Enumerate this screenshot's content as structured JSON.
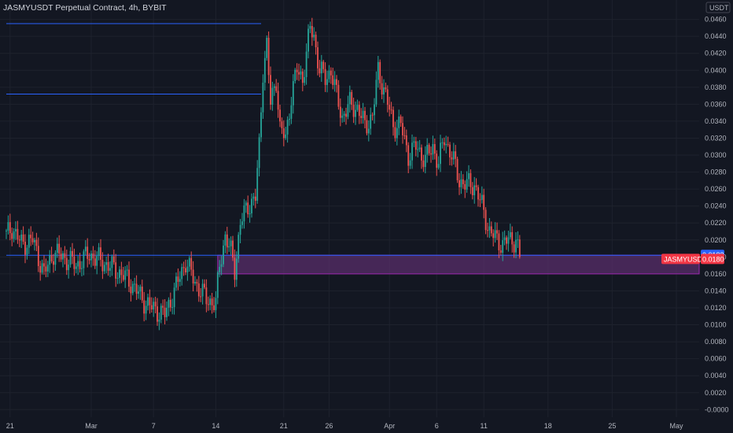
{
  "header": {
    "title": "JASMYUSDT Perpetual Contract, 4h, BYBIT",
    "currency": "USDT"
  },
  "colors": {
    "background": "#131722",
    "up": "#26a69a",
    "down": "#ef5350",
    "grid": "#1e222d",
    "hline": "#2962ff",
    "zone_fill": "#5c2f6e",
    "zone_border": "#9c27b0",
    "price_tag": "#f23645",
    "level_tag": "#2962ff"
  },
  "chart_data": {
    "type": "candlestick",
    "symbol": "JASMYUSDT",
    "interval": "4h",
    "exchange": "BYBIT",
    "ylim": [
      -0.0009,
      0.0481
    ],
    "y_ticks": [
      "0.0460",
      "0.0440",
      "0.0420",
      "0.0400",
      "0.0380",
      "0.0360",
      "0.0340",
      "0.0320",
      "0.0300",
      "0.0280",
      "0.0260",
      "0.0240",
      "0.0220",
      "0.0200",
      "0.0180",
      "0.0160",
      "0.0140",
      "0.0120",
      "0.0100",
      "0.0080",
      "0.0060",
      "0.0040",
      "0.0020",
      "-0.0000"
    ],
    "x_ticks": [
      {
        "label": "21",
        "bar": 2
      },
      {
        "label": "Mar",
        "bar": 45
      },
      {
        "label": "7",
        "bar": 78
      },
      {
        "label": "14",
        "bar": 111
      },
      {
        "label": "21",
        "bar": 147
      },
      {
        "label": "26",
        "bar": 171
      },
      {
        "label": "Apr",
        "bar": 203
      },
      {
        "label": "6",
        "bar": 228
      },
      {
        "label": "11",
        "bar": 253
      },
      {
        "label": "18",
        "bar": 287
      },
      {
        "label": "25",
        "bar": 321
      },
      {
        "label": "May",
        "bar": 355
      }
    ],
    "bars_visible": 384,
    "anchors": [
      [
        0,
        0.0205
      ],
      [
        3,
        0.0215
      ],
      [
        8,
        0.0195
      ],
      [
        14,
        0.02
      ],
      [
        20,
        0.016
      ],
      [
        25,
        0.0185
      ],
      [
        30,
        0.018
      ],
      [
        37,
        0.017
      ],
      [
        44,
        0.0183
      ],
      [
        50,
        0.0175
      ],
      [
        58,
        0.0165
      ],
      [
        66,
        0.015
      ],
      [
        72,
        0.013
      ],
      [
        77,
        0.012
      ],
      [
        84,
        0.0112
      ],
      [
        90,
        0.0145
      ],
      [
        95,
        0.0175
      ],
      [
        100,
        0.015
      ],
      [
        106,
        0.013
      ],
      [
        111,
        0.0125
      ],
      [
        113,
        0.017
      ],
      [
        116,
        0.0205
      ],
      [
        119,
        0.0185
      ],
      [
        121,
        0.0165
      ],
      [
        124,
        0.022
      ],
      [
        128,
        0.024
      ],
      [
        132,
        0.025
      ],
      [
        134,
        0.031
      ],
      [
        136,
        0.04
      ],
      [
        138,
        0.043
      ],
      [
        140,
        0.036
      ],
      [
        143,
        0.039
      ],
      [
        145,
        0.033
      ],
      [
        148,
        0.032
      ],
      [
        151,
        0.037
      ],
      [
        154,
        0.04
      ],
      [
        157,
        0.039
      ],
      [
        161,
        0.045
      ],
      [
        163,
        0.044
      ],
      [
        166,
        0.04
      ],
      [
        169,
        0.039
      ],
      [
        172,
        0.04
      ],
      [
        175,
        0.037
      ],
      [
        178,
        0.0345
      ],
      [
        182,
        0.036
      ],
      [
        186,
        0.0355
      ],
      [
        190,
        0.0335
      ],
      [
        194,
        0.0345
      ],
      [
        197,
        0.04
      ],
      [
        201,
        0.037
      ],
      [
        205,
        0.0335
      ],
      [
        209,
        0.0335
      ],
      [
        213,
        0.03
      ],
      [
        217,
        0.031
      ],
      [
        222,
        0.0295
      ],
      [
        226,
        0.031
      ],
      [
        229,
        0.029
      ],
      [
        232,
        0.032
      ],
      [
        236,
        0.03
      ],
      [
        240,
        0.027
      ],
      [
        244,
        0.0265
      ],
      [
        248,
        0.0265
      ],
      [
        252,
        0.024
      ],
      [
        256,
        0.021
      ],
      [
        260,
        0.02
      ],
      [
        263,
        0.0195
      ],
      [
        266,
        0.02
      ],
      [
        270,
        0.02
      ],
      [
        272,
        0.018
      ]
    ],
    "horizontal_levels": [
      {
        "price": 0.0455,
        "from_bar": 0,
        "to_bar": 135
      },
      {
        "price": 0.0372,
        "from_bar": 0,
        "to_bar": 135
      },
      {
        "price": 0.0182,
        "from_bar": 0,
        "to_bar": 384
      }
    ],
    "zone": {
      "from_bar": 112,
      "to_bar": 384,
      "top": 0.0182,
      "bottom": 0.016
    },
    "last_price": "0.0180",
    "last_price_label": "JASMYUSDT",
    "level_label": "0.0182"
  }
}
